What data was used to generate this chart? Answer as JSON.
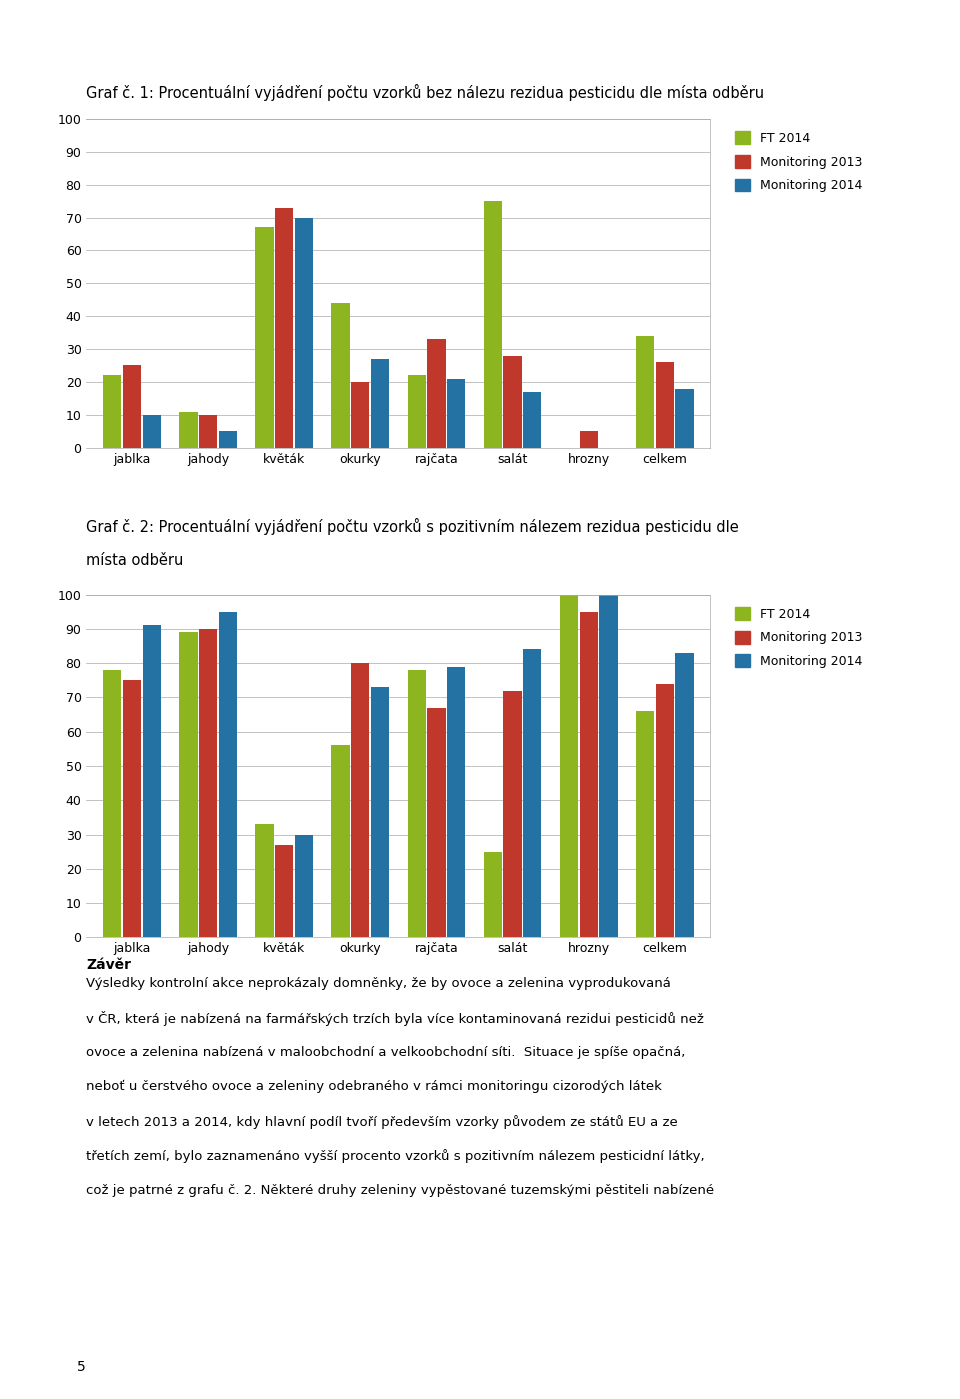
{
  "chart1": {
    "title": "Graf č. 1: Procentuální vyjádření počtu vzorků bez nálezu rezidua pesticidu dle místa odběru",
    "categories": [
      "jablka",
      "jahody",
      "květák",
      "okurky",
      "rajčata",
      "salát",
      "hrozny",
      "celkem"
    ],
    "ft2014": [
      22,
      11,
      67,
      44,
      22,
      75,
      0,
      34
    ],
    "mon2013": [
      25,
      10,
      73,
      20,
      33,
      28,
      5,
      26
    ],
    "mon2014": [
      10,
      5,
      70,
      27,
      21,
      17,
      0,
      18
    ],
    "ylim": [
      0,
      100
    ],
    "yticks": [
      0,
      10,
      20,
      30,
      40,
      50,
      60,
      70,
      80,
      90,
      100
    ]
  },
  "chart2": {
    "title": "Graf č. 2: Procentuální vyjádření počtu vzorků s pozitivním nálezem rezidua pesticidu dle\nmísta odběru",
    "categories": [
      "jablka",
      "jahody",
      "květák",
      "okurky",
      "rajčata",
      "salát",
      "hrozny",
      "celkem"
    ],
    "ft2014": [
      78,
      89,
      33,
      56,
      78,
      25,
      100,
      66
    ],
    "mon2013": [
      75,
      90,
      27,
      80,
      67,
      72,
      95,
      74
    ],
    "mon2014": [
      91,
      95,
      30,
      73,
      79,
      84,
      100,
      83
    ],
    "ylim": [
      0,
      100
    ],
    "yticks": [
      0,
      10,
      20,
      30,
      40,
      50,
      60,
      70,
      80,
      90,
      100
    ]
  },
  "colors": {
    "ft2014": "#8DB520",
    "mon2013": "#C0382B",
    "mon2014": "#2471A3"
  },
  "legend_labels": [
    "FT 2014",
    "Monitoring 2013",
    "Monitoring 2014"
  ],
  "footer_text": "Závěr\n\nVýsledky kontrolní akce neprokázaly domněnky, že by ovoce a zelenina vyprodukovaná\nv ČR, která je nabízená na farmářských trzích byla více kontaminovaná rezidui pesticidů než\novoce a zelenina nabízená v maloobchodní a velkoobchodní síti.  Situace je spíše opačná,\nneboť u čerstvého ovoce a zeleniny odebraného v rámci monitoringu cizorodých látek\nv letech 2013 a 2014, kdy hlavní podíl tvoří především vzorky původem ze států EU a ze\ntřetích zemí, bylo zaznamenáno vyšší procento vzorků s pozitivním nálezem pesticidní látky,\ncož je patrné z grafu č. 2. Některé druhy zeleniny vypěstované tuzemskými pěstiteli nabízené",
  "page_number": "5"
}
